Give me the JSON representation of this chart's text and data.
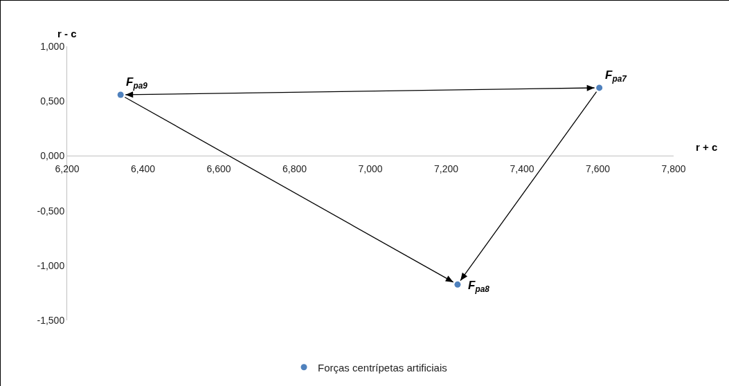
{
  "chart_data": {
    "type": "scatter",
    "xlabel": "r + c",
    "ylabel": "r - c",
    "x": [
      7.604,
      7.23,
      6.341
    ],
    "series": [
      {
        "name": "Forças centrípetas artificiais",
        "color": "#4f81bd",
        "values": [
          0.622,
          -1.174,
          0.558
        ]
      }
    ],
    "annotations": [
      {
        "text": "F$_{pa7}$",
        "x": 7.604,
        "y": 0.622
      },
      {
        "text": "F$_{pa8}$",
        "x": 7.23,
        "y": -1.174
      },
      {
        "text": "F$_{pa9}$",
        "x": 6.341,
        "y": 0.558
      }
    ],
    "xlim": [
      6.2,
      7.8
    ],
    "ylim": [
      -1.5,
      1.0
    ],
    "xticks": [
      {
        "value": 6.2,
        "label": "6,200"
      },
      {
        "value": 6.4,
        "label": "6,400"
      },
      {
        "value": 6.6,
        "label": "6,600"
      },
      {
        "value": 6.8,
        "label": "6,800"
      },
      {
        "value": 7.0,
        "label": "7,000"
      },
      {
        "value": 7.2,
        "label": "7,200"
      },
      {
        "value": 7.4,
        "label": "7,400"
      },
      {
        "value": 7.6,
        "label": "7,600"
      },
      {
        "value": 7.8,
        "label": "7,800"
      }
    ],
    "yticks": [
      {
        "value": -1.5,
        "label": "-1,500"
      },
      {
        "value": -1.0,
        "label": "-1,000"
      },
      {
        "value": -0.5,
        "label": "-0,500"
      },
      {
        "value": 0,
        "label": "0,000"
      },
      {
        "value": 0.5,
        "label": "0,500"
      },
      {
        "value": 1.0,
        "label": "1,000"
      }
    ],
    "grid": false,
    "legend": "bottom",
    "marker": "circle"
  }
}
